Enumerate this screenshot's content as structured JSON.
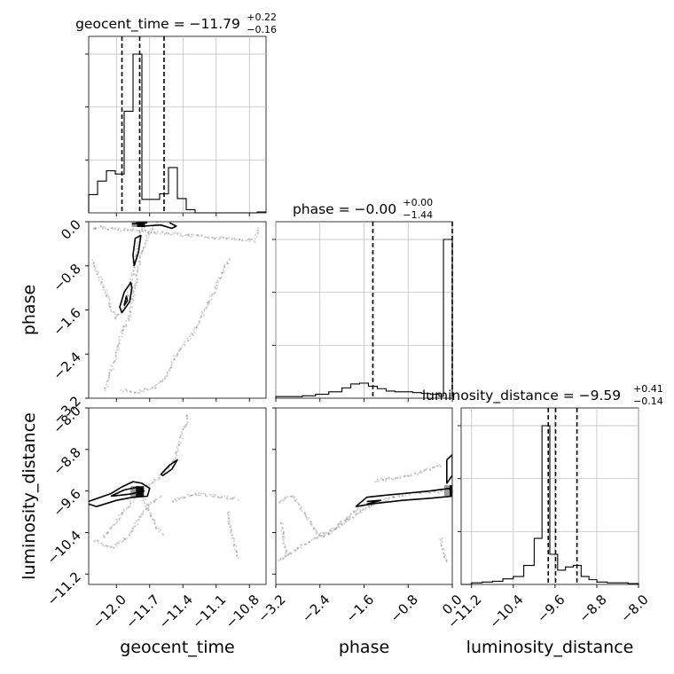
{
  "chart_data": {
    "type": "corner",
    "parameters": [
      {
        "name": "geocent_time",
        "axis_label": "geocent_time",
        "title_main": "geocent_time = −11.79",
        "title_sup": "+0.22",
        "title_sub": "−0.16",
        "range": [
          -12.25,
          -10.65
        ],
        "ticks": [
          -12.0,
          -11.7,
          -11.4,
          -11.1,
          -10.8
        ],
        "tick_labels": [
          "−12.0",
          "−11.7",
          "−11.4",
          "−11.1",
          "−10.8"
        ],
        "quantiles": [
          -11.95,
          -11.79,
          -11.57
        ]
      },
      {
        "name": "phase",
        "axis_label": "phase",
        "title_main": "phase = −0.00",
        "title_sup": "+0.00",
        "title_sub": "−1.44",
        "range": [
          -3.2,
          0.0
        ],
        "ticks": [
          -3.2,
          -2.4,
          -1.6,
          -0.8,
          0.0
        ],
        "tick_labels": [
          "−3.2",
          "−2.4",
          "−1.6",
          "−0.8",
          "0.0"
        ],
        "quantiles": [
          -1.44,
          0.0
        ]
      },
      {
        "name": "luminosity_distance",
        "axis_label": "luminosity_distance",
        "title_main": "luminosity_distance = −9.59",
        "title_sup": "+0.41",
        "title_sub": "−0.14",
        "range": [
          -11.4,
          -8.0
        ],
        "ticks": [
          -11.2,
          -10.4,
          -9.6,
          -8.8,
          -8.0
        ],
        "tick_labels": [
          "−11.2",
          "−10.4",
          "−9.6",
          "−8.8",
          "−8.0"
        ],
        "quantiles": [
          -9.73,
          -9.59,
          -9.18
        ]
      }
    ],
    "histograms": [
      {
        "param": "geocent_time",
        "edges": [
          -12.25,
          -12.17,
          -12.09,
          -12.01,
          -11.93,
          -11.85,
          -11.77,
          -11.69,
          -11.61,
          -11.53,
          -11.45,
          -11.37,
          -11.29,
          -11.21,
          -11.13,
          -11.05,
          -10.97,
          -10.89,
          -10.81,
          -10.73,
          -10.65
        ],
        "counts": [
          0.115,
          0.2,
          0.265,
          0.245,
          0.64,
          1.0,
          0.085,
          0.085,
          0.12,
          0.285,
          0.09,
          0.02,
          0.0,
          0.0,
          0.0,
          0.0,
          0.0,
          0.0,
          0.0,
          0.005
        ]
      },
      {
        "param": "phase",
        "edges": [
          -3.2,
          -2.96,
          -2.72,
          -2.48,
          -2.24,
          -2.0,
          -1.84,
          -1.68,
          -1.52,
          -1.36,
          -1.2,
          -1.04,
          -0.88,
          -0.72,
          -0.56,
          -0.4,
          -0.24,
          -0.16,
          0.0
        ],
        "counts": [
          0.01,
          0.01,
          0.015,
          0.025,
          0.04,
          0.065,
          0.09,
          0.095,
          0.075,
          0.06,
          0.045,
          0.04,
          0.04,
          0.035,
          0.03,
          0.025,
          0.012,
          1.0
        ]
      },
      {
        "param": "luminosity_distance",
        "edges": [
          -11.4,
          -11.2,
          -11.0,
          -10.8,
          -10.6,
          -10.4,
          -10.2,
          -10.0,
          -9.85,
          -9.7,
          -9.55,
          -9.4,
          -9.25,
          -9.1,
          -8.95,
          -8.8,
          -8.6,
          -8.4,
          -8.2,
          -8.0
        ],
        "counts": [
          0.0,
          0.01,
          0.015,
          0.02,
          0.035,
          0.05,
          0.12,
          0.29,
          1.0,
          0.19,
          0.09,
          0.11,
          0.12,
          0.05,
          0.03,
          0.015,
          0.01,
          0.01,
          0.005
        ]
      }
    ],
    "contours_2d": [
      {
        "x_param": "geocent_time",
        "y_param": "phase",
        "lines": [
          [
            [
              -11.95,
              -1.65
            ],
            [
              -11.88,
              -1.45
            ],
            [
              -11.86,
              -1.2
            ],
            [
              -11.87,
              -1.1
            ],
            [
              -11.93,
              -1.28
            ],
            [
              -11.97,
              -1.55
            ],
            [
              -11.95,
              -1.65
            ]
          ],
          [
            [
              -11.93,
              -1.52
            ],
            [
              -11.91,
              -1.35
            ],
            [
              -11.9,
              -1.43
            ],
            [
              -11.93,
              -1.52
            ]
          ],
          [
            [
              -11.84,
              -0.8
            ],
            [
              -11.8,
              -0.55
            ],
            [
              -11.78,
              -0.25
            ],
            [
              -11.83,
              -0.3
            ],
            [
              -11.85,
              -0.6
            ],
            [
              -11.84,
              -0.8
            ]
          ],
          [
            [
              -11.82,
              -0.02
            ],
            [
              -11.76,
              -0.08
            ],
            [
              -11.6,
              -0.06
            ],
            [
              -11.5,
              -0.12
            ],
            [
              -11.46,
              -0.08
            ],
            [
              -11.52,
              -0.02
            ]
          ],
          [
            [
              -11.86,
              -0.04
            ],
            [
              -11.72,
              -0.02
            ]
          ]
        ],
        "dense": [
          [
            -11.79,
            0.0
          ]
        ]
      },
      {
        "x_param": "geocent_time",
        "y_param": "luminosity_distance",
        "lines": [
          [
            [
              -12.25,
              -9.8
            ],
            [
              -12.05,
              -9.65
            ],
            [
              -11.95,
              -9.52
            ],
            [
              -11.85,
              -9.42
            ],
            [
              -11.77,
              -9.45
            ],
            [
              -11.7,
              -9.55
            ],
            [
              -11.72,
              -9.7
            ],
            [
              -11.85,
              -9.72
            ],
            [
              -12.0,
              -9.78
            ],
            [
              -12.18,
              -9.9
            ],
            [
              -12.25,
              -9.85
            ]
          ],
          [
            [
              -12.05,
              -9.7
            ],
            [
              -11.93,
              -9.58
            ],
            [
              -11.8,
              -9.52
            ],
            [
              -11.75,
              -9.6
            ],
            [
              -11.88,
              -9.66
            ],
            [
              -12.05,
              -9.7
            ]
          ],
          [
            [
              -11.6,
              -9.28
            ],
            [
              -11.52,
              -9.1
            ],
            [
              -11.45,
              -9.0
            ],
            [
              -11.5,
              -9.18
            ],
            [
              -11.58,
              -9.3
            ],
            [
              -11.6,
              -9.28
            ]
          ]
        ],
        "dense": [
          [
            -11.8,
            -9.61
          ]
        ]
      },
      {
        "x_param": "phase",
        "y_param": "luminosity_distance",
        "lines": [
          [
            [
              -1.75,
              -9.9
            ],
            [
              -1.55,
              -9.72
            ],
            [
              -1.2,
              -9.68
            ],
            [
              -0.8,
              -9.64
            ],
            [
              -0.4,
              -9.6
            ],
            [
              -0.05,
              -9.55
            ],
            [
              0.0,
              -9.7
            ],
            [
              -0.4,
              -9.74
            ],
            [
              -0.9,
              -9.78
            ],
            [
              -1.4,
              -9.84
            ],
            [
              -1.75,
              -9.9
            ]
          ],
          [
            [
              -1.55,
              -9.85
            ],
            [
              -1.3,
              -9.78
            ],
            [
              -1.55,
              -9.8
            ]
          ],
          [
            [
              -0.1,
              -9.0
            ],
            [
              0.0,
              -8.9
            ],
            [
              0.0,
              -9.3
            ],
            [
              -0.1,
              -9.45
            ],
            [
              -0.1,
              -9.0
            ]
          ]
        ],
        "dense": [
          [
            0.0,
            -9.59
          ]
        ]
      }
    ],
    "scatter_tracks_2d": [
      {
        "x_param": "geocent_time",
        "y_param": "phase",
        "tracks": [
          [
            [
              -12.22,
              -0.7
            ],
            [
              -12.1,
              -1.25
            ],
            [
              -12.05,
              -1.55
            ],
            [
              -12.0,
              -1.75
            ],
            [
              -11.95,
              -1.65
            ],
            [
              -11.9,
              -1.4
            ],
            [
              -11.87,
              -1.1
            ],
            [
              -11.82,
              -0.6
            ],
            [
              -11.78,
              -0.2
            ],
            [
              -11.74,
              0.0
            ]
          ],
          [
            [
              -12.1,
              -3.05
            ],
            [
              -12.05,
              -2.7
            ],
            [
              -12.0,
              -2.4
            ],
            [
              -11.95,
              -2.0
            ],
            [
              -11.9,
              -1.8
            ],
            [
              -11.85,
              -1.4
            ],
            [
              -11.8,
              -0.8
            ],
            [
              -11.72,
              -0.25
            ],
            [
              -11.62,
              0.0
            ]
          ],
          [
            [
              -11.95,
              -3.05
            ],
            [
              -11.82,
              -3.1
            ],
            [
              -11.65,
              -3.0
            ],
            [
              -11.55,
              -2.8
            ],
            [
              -11.47,
              -2.45
            ],
            [
              -11.4,
              -2.25
            ],
            [
              -11.3,
              -2.0
            ],
            [
              -11.2,
              -1.6
            ],
            [
              -11.08,
              -1.1
            ],
            [
              -10.98,
              -0.65
            ]
          ],
          [
            [
              -12.2,
              -0.15
            ],
            [
              -12.18,
              -0.1
            ],
            [
              -10.75,
              -0.35
            ],
            [
              -10.72,
              -0.1
            ]
          ]
        ]
      },
      {
        "x_param": "geocent_time",
        "y_param": "luminosity_distance",
        "tracks": [
          [
            [
              -12.12,
              -10.5
            ],
            [
              -12.0,
              -10.2
            ],
            [
              -11.88,
              -9.85
            ],
            [
              -11.8,
              -9.6
            ],
            [
              -11.68,
              -9.45
            ],
            [
              -11.58,
              -9.28
            ],
            [
              -11.48,
              -9.0
            ],
            [
              -11.42,
              -8.6
            ],
            [
              -11.35,
              -8.1
            ]
          ],
          [
            [
              -12.2,
              -10.55
            ],
            [
              -12.05,
              -10.7
            ],
            [
              -11.9,
              -10.5
            ],
            [
              -11.78,
              -10.1
            ],
            [
              -11.7,
              -9.85
            ],
            [
              -11.6,
              -9.7
            ]
          ],
          [
            [
              -11.78,
              -9.65
            ],
            [
              -11.72,
              -9.9
            ],
            [
              -11.65,
              -10.25
            ],
            [
              -11.58,
              -10.45
            ]
          ],
          [
            [
              -11.5,
              -9.8
            ],
            [
              -11.3,
              -9.65
            ],
            [
              -11.1,
              -9.7
            ],
            [
              -10.9,
              -9.75
            ]
          ],
          [
            [
              -11.0,
              -10.0
            ],
            [
              -10.95,
              -10.5
            ],
            [
              -10.9,
              -10.9
            ]
          ]
        ]
      },
      {
        "x_param": "phase",
        "y_param": "luminosity_distance",
        "tracks": [
          [
            [
              -3.15,
              -10.95
            ],
            [
              -2.8,
              -10.7
            ],
            [
              -2.4,
              -10.45
            ],
            [
              -2.0,
              -10.25
            ],
            [
              -1.6,
              -9.95
            ],
            [
              -1.2,
              -9.75
            ],
            [
              -0.8,
              -9.65
            ],
            [
              -0.4,
              -9.62
            ],
            [
              0.0,
              -9.6
            ]
          ],
          [
            [
              -3.15,
              -9.8
            ],
            [
              -2.9,
              -9.7
            ],
            [
              -2.7,
              -10.0
            ],
            [
              -2.5,
              -10.35
            ],
            [
              -2.35,
              -10.5
            ],
            [
              -2.2,
              -10.4
            ],
            [
              -1.9,
              -10.1
            ],
            [
              -1.6,
              -9.85
            ]
          ],
          [
            [
              -3.1,
              -10.2
            ],
            [
              -3.05,
              -10.6
            ],
            [
              -3.0,
              -10.9
            ]
          ],
          [
            [
              -1.4,
              -9.4
            ],
            [
              -1.0,
              -9.35
            ],
            [
              -0.6,
              -9.25
            ],
            [
              -0.2,
              -9.1
            ]
          ],
          [
            [
              -0.2,
              -10.5
            ],
            [
              -0.15,
              -10.8
            ],
            [
              -0.1,
              -11.0
            ]
          ]
        ]
      }
    ],
    "grid": true
  }
}
